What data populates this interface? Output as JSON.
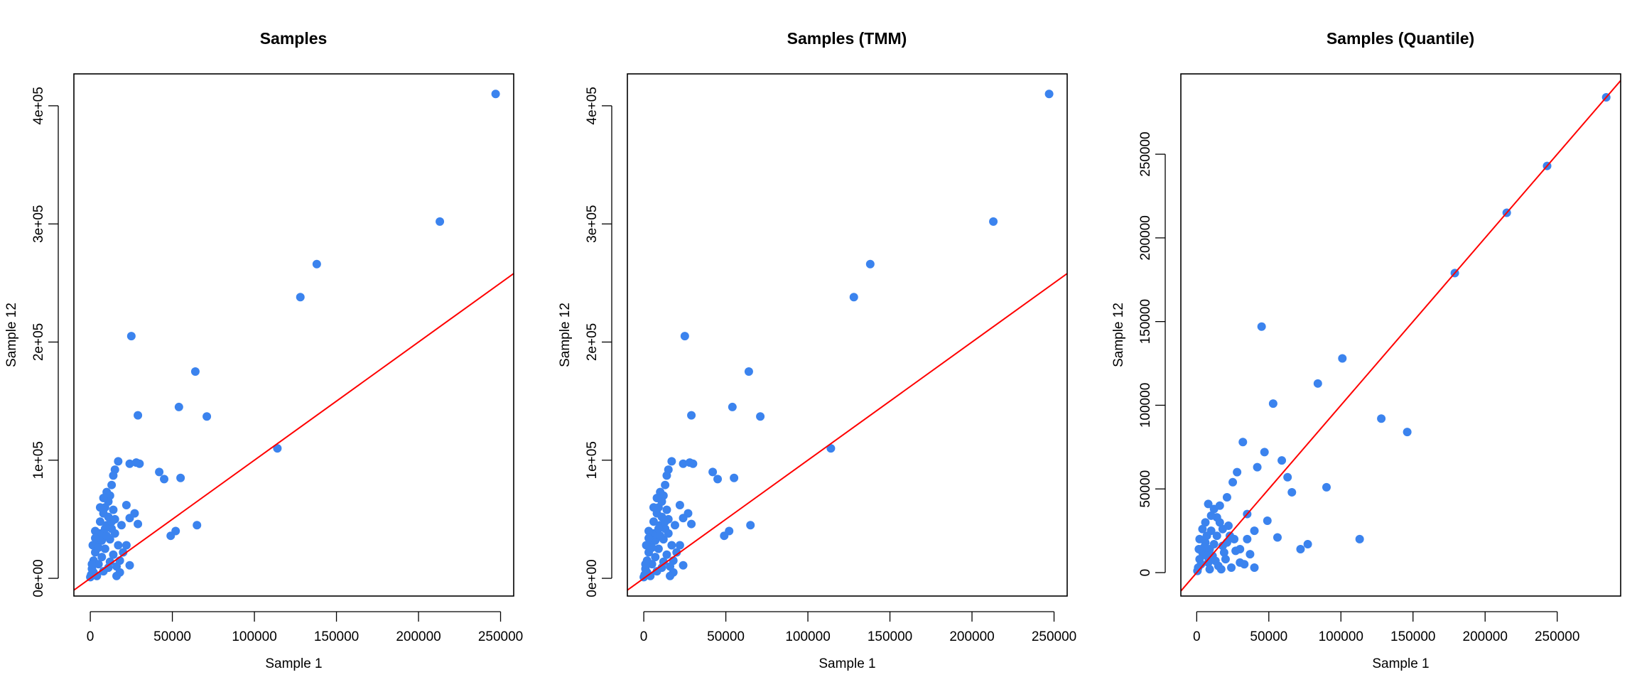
{
  "colors": {
    "points": "#3b83ee",
    "line": "#ff0000",
    "frame": "#000000"
  },
  "chart_data": [
    {
      "type": "scatter",
      "title": "Samples",
      "xlabel": "Sample 1",
      "ylabel": "Sample 12",
      "xlim": [
        -10000,
        258000
      ],
      "ylim": [
        -15000,
        427000
      ],
      "xticks": [
        {
          "v": 0,
          "label": "0"
        },
        {
          "v": 50000,
          "label": "50000"
        },
        {
          "v": 100000,
          "label": "100000"
        },
        {
          "v": 150000,
          "label": "150000"
        },
        {
          "v": 200000,
          "label": "200000"
        },
        {
          "v": 250000,
          "label": "250000"
        }
      ],
      "yticks": [
        {
          "v": 0,
          "label": "0e+00"
        },
        {
          "v": 100000,
          "label": "1e+05"
        },
        {
          "v": 200000,
          "label": "2e+05"
        },
        {
          "v": 300000,
          "label": "3e+05"
        },
        {
          "v": 400000,
          "label": "4e+05"
        }
      ],
      "line": {
        "intercept": 0,
        "slope": 1.0
      },
      "points": [
        [
          247000,
          410000
        ],
        [
          213000,
          302000
        ],
        [
          138000,
          266000
        ],
        [
          128000,
          238000
        ],
        [
          114000,
          110000
        ],
        [
          25000,
          205000
        ],
        [
          64000,
          175000
        ],
        [
          54000,
          145000
        ],
        [
          71000,
          137000
        ],
        [
          29000,
          138000
        ],
        [
          17000,
          99000
        ],
        [
          24000,
          97000
        ],
        [
          28000,
          98000
        ],
        [
          30000,
          97000
        ],
        [
          42000,
          90000
        ],
        [
          45000,
          84000
        ],
        [
          55000,
          85000
        ],
        [
          15000,
          92000
        ],
        [
          14000,
          87000
        ],
        [
          13000,
          79000
        ],
        [
          10000,
          73000
        ],
        [
          12000,
          70000
        ],
        [
          22000,
          62000
        ],
        [
          27000,
          55000
        ],
        [
          24000,
          51000
        ],
        [
          29000,
          46000
        ],
        [
          9000,
          60000
        ],
        [
          11000,
          65000
        ],
        [
          65000,
          45000
        ],
        [
          52000,
          40000
        ],
        [
          49000,
          36000
        ],
        [
          22000,
          28000
        ],
        [
          24000,
          11000
        ],
        [
          18000,
          15000
        ],
        [
          15000,
          50000
        ],
        [
          13000,
          42000
        ],
        [
          10000,
          45000
        ],
        [
          8000,
          55000
        ],
        [
          6000,
          38000
        ],
        [
          4000,
          30000
        ],
        [
          3000,
          22000
        ],
        [
          2000,
          15000
        ],
        [
          1000,
          8000
        ],
        [
          500,
          3000
        ],
        [
          5000,
          12000
        ],
        [
          7000,
          18000
        ],
        [
          9000,
          25000
        ],
        [
          12000,
          33000
        ],
        [
          14000,
          20000
        ],
        [
          16000,
          10000
        ],
        [
          3000,
          40000
        ],
        [
          6000,
          48000
        ],
        [
          2000,
          5000
        ],
        [
          4000,
          2000
        ],
        [
          8000,
          6000
        ],
        [
          11000,
          9000
        ],
        [
          1500,
          28000
        ],
        [
          7000,
          32000
        ],
        [
          10000,
          36000
        ],
        [
          12000,
          14000
        ],
        [
          5000,
          26000
        ],
        [
          0,
          1000
        ],
        [
          1000,
          12000
        ],
        [
          3000,
          34000
        ],
        [
          9000,
          42000
        ],
        [
          13000,
          48000
        ],
        [
          11000,
          52000
        ],
        [
          6000,
          60000
        ],
        [
          8000,
          68000
        ],
        [
          14000,
          58000
        ],
        [
          15000,
          38000
        ],
        [
          17000,
          28000
        ],
        [
          19000,
          45000
        ],
        [
          20000,
          22000
        ],
        [
          18000,
          5000
        ],
        [
          16000,
          2000
        ]
      ]
    },
    {
      "type": "scatter",
      "title": "Samples (TMM)",
      "xlabel": "Sample 1",
      "ylabel": "Sample 12",
      "xlim": [
        -10000,
        258000
      ],
      "ylim": [
        -15000,
        427000
      ],
      "xticks": [
        {
          "v": 0,
          "label": "0"
        },
        {
          "v": 50000,
          "label": "50000"
        },
        {
          "v": 100000,
          "label": "100000"
        },
        {
          "v": 150000,
          "label": "150000"
        },
        {
          "v": 200000,
          "label": "200000"
        },
        {
          "v": 250000,
          "label": "250000"
        }
      ],
      "yticks": [
        {
          "v": 0,
          "label": "0e+00"
        },
        {
          "v": 100000,
          "label": "1e+05"
        },
        {
          "v": 200000,
          "label": "2e+05"
        },
        {
          "v": 300000,
          "label": "3e+05"
        },
        {
          "v": 400000,
          "label": "4e+05"
        }
      ],
      "line": {
        "intercept": 0,
        "slope": 1.0
      },
      "points": [
        [
          247000,
          410000
        ],
        [
          213000,
          302000
        ],
        [
          138000,
          266000
        ],
        [
          128000,
          238000
        ],
        [
          114000,
          110000
        ],
        [
          25000,
          205000
        ],
        [
          64000,
          175000
        ],
        [
          54000,
          145000
        ],
        [
          71000,
          137000
        ],
        [
          29000,
          138000
        ],
        [
          17000,
          99000
        ],
        [
          24000,
          97000
        ],
        [
          28000,
          98000
        ],
        [
          30000,
          97000
        ],
        [
          42000,
          90000
        ],
        [
          45000,
          84000
        ],
        [
          55000,
          85000
        ],
        [
          15000,
          92000
        ],
        [
          14000,
          87000
        ],
        [
          13000,
          79000
        ],
        [
          10000,
          73000
        ],
        [
          12000,
          70000
        ],
        [
          22000,
          62000
        ],
        [
          27000,
          55000
        ],
        [
          24000,
          51000
        ],
        [
          29000,
          46000
        ],
        [
          9000,
          60000
        ],
        [
          11000,
          65000
        ],
        [
          65000,
          45000
        ],
        [
          52000,
          40000
        ],
        [
          49000,
          36000
        ],
        [
          22000,
          28000
        ],
        [
          24000,
          11000
        ],
        [
          18000,
          15000
        ],
        [
          15000,
          50000
        ],
        [
          13000,
          42000
        ],
        [
          10000,
          45000
        ],
        [
          8000,
          55000
        ],
        [
          6000,
          38000
        ],
        [
          4000,
          30000
        ],
        [
          3000,
          22000
        ],
        [
          2000,
          15000
        ],
        [
          1000,
          8000
        ],
        [
          500,
          3000
        ],
        [
          5000,
          12000
        ],
        [
          7000,
          18000
        ],
        [
          9000,
          25000
        ],
        [
          12000,
          33000
        ],
        [
          14000,
          20000
        ],
        [
          16000,
          10000
        ],
        [
          3000,
          40000
        ],
        [
          6000,
          48000
        ],
        [
          2000,
          5000
        ],
        [
          4000,
          2000
        ],
        [
          8000,
          6000
        ],
        [
          11000,
          9000
        ],
        [
          1500,
          28000
        ],
        [
          7000,
          32000
        ],
        [
          10000,
          36000
        ],
        [
          12000,
          14000
        ],
        [
          5000,
          26000
        ],
        [
          0,
          1000
        ],
        [
          1000,
          12000
        ],
        [
          3000,
          34000
        ],
        [
          9000,
          42000
        ],
        [
          13000,
          48000
        ],
        [
          11000,
          52000
        ],
        [
          6000,
          60000
        ],
        [
          8000,
          68000
        ],
        [
          14000,
          58000
        ],
        [
          15000,
          38000
        ],
        [
          17000,
          28000
        ],
        [
          19000,
          45000
        ],
        [
          20000,
          22000
        ],
        [
          18000,
          5000
        ],
        [
          16000,
          2000
        ]
      ]
    },
    {
      "type": "scatter",
      "title": "Samples (Quantile)",
      "xlabel": "Sample 1",
      "ylabel": "Sample 12",
      "xlim": [
        -11000,
        294000
      ],
      "ylim": [
        -14000,
        298000
      ],
      "xticks": [
        {
          "v": 0,
          "label": "0"
        },
        {
          "v": 50000,
          "label": "50000"
        },
        {
          "v": 100000,
          "label": "100000"
        },
        {
          "v": 150000,
          "label": "150000"
        },
        {
          "v": 200000,
          "label": "200000"
        },
        {
          "v": 250000,
          "label": "250000"
        }
      ],
      "yticks": [
        {
          "v": 0,
          "label": "0"
        },
        {
          "v": 50000,
          "label": "50000"
        },
        {
          "v": 100000,
          "label": "100000"
        },
        {
          "v": 150000,
          "label": "150000"
        },
        {
          "v": 200000,
          "label": "200000"
        },
        {
          "v": 250000,
          "label": "250000"
        }
      ],
      "line": {
        "intercept": 0,
        "slope": 1.0
      },
      "points": [
        [
          284000,
          284000
        ],
        [
          243000,
          243000
        ],
        [
          215000,
          215000
        ],
        [
          179000,
          179000
        ],
        [
          45000,
          147000
        ],
        [
          101000,
          128000
        ],
        [
          84000,
          113000
        ],
        [
          53000,
          101000
        ],
        [
          128000,
          92000
        ],
        [
          146000,
          84000
        ],
        [
          32000,
          78000
        ],
        [
          47000,
          72000
        ],
        [
          59000,
          67000
        ],
        [
          42000,
          63000
        ],
        [
          28000,
          60000
        ],
        [
          63000,
          57000
        ],
        [
          25000,
          54000
        ],
        [
          90000,
          51000
        ],
        [
          66000,
          48000
        ],
        [
          21000,
          45000
        ],
        [
          35000,
          35000
        ],
        [
          49000,
          31000
        ],
        [
          40000,
          25000
        ],
        [
          56000,
          21000
        ],
        [
          113000,
          20000
        ],
        [
          77000,
          17000
        ],
        [
          72000,
          14000
        ],
        [
          37000,
          11000
        ],
        [
          30000,
          6000
        ],
        [
          40000,
          3000
        ],
        [
          16000,
          30000
        ],
        [
          12000,
          38000
        ],
        [
          8000,
          41000
        ],
        [
          10000,
          25000
        ],
        [
          6000,
          18000
        ],
        [
          4000,
          12000
        ],
        [
          2000,
          8000
        ],
        [
          1000,
          3000
        ],
        [
          3000,
          5000
        ],
        [
          5000,
          15000
        ],
        [
          7000,
          22000
        ],
        [
          9000,
          14000
        ],
        [
          11000,
          10000
        ],
        [
          13000,
          7000
        ],
        [
          15000,
          4000
        ],
        [
          17000,
          2000
        ],
        [
          19000,
          12000
        ],
        [
          21000,
          18000
        ],
        [
          23000,
          22000
        ],
        [
          18000,
          26000
        ],
        [
          14000,
          33000
        ],
        [
          6000,
          30000
        ],
        [
          4000,
          26000
        ],
        [
          2000,
          20000
        ],
        [
          20000,
          8000
        ],
        [
          24000,
          3000
        ],
        [
          27000,
          13000
        ],
        [
          12000,
          17000
        ],
        [
          8000,
          6000
        ],
        [
          1500,
          14000
        ],
        [
          500,
          1000
        ],
        [
          26000,
          20000
        ],
        [
          22000,
          28000
        ],
        [
          16000,
          40000
        ],
        [
          10000,
          34000
        ],
        [
          30000,
          14000
        ],
        [
          35000,
          20000
        ],
        [
          33000,
          5000
        ],
        [
          18000,
          16000
        ],
        [
          14000,
          22000
        ],
        [
          9000,
          2000
        ],
        [
          7000,
          10000
        ]
      ]
    }
  ]
}
